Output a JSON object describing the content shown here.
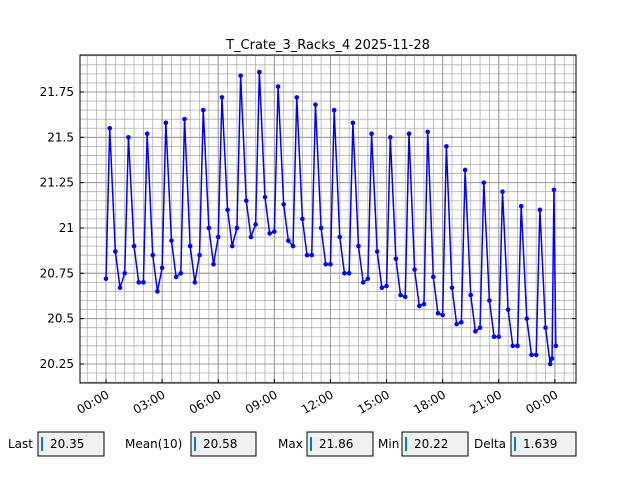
{
  "chart_data": {
    "type": "line",
    "title": "T_Crate_3_Racks_4 2025-11-28",
    "x": [
      0,
      0.2,
      0.5,
      0.75,
      1,
      1.2,
      1.5,
      1.75,
      2,
      2.2,
      2.5,
      2.75,
      3,
      3.2,
      3.5,
      3.75,
      4,
      4.2,
      4.5,
      4.75,
      5,
      5.2,
      5.5,
      5.75,
      6,
      6.2,
      6.5,
      6.75,
      7,
      7.2,
      7.5,
      7.75,
      8,
      8.2,
      8.5,
      8.75,
      9,
      9.2,
      9.5,
      9.75,
      10,
      10.2,
      10.5,
      10.75,
      11,
      11.2,
      11.5,
      11.75,
      12,
      12.2,
      12.5,
      12.75,
      13,
      13.2,
      13.5,
      13.75,
      14,
      14.2,
      14.5,
      14.75,
      15,
      15.2,
      15.5,
      15.75,
      16,
      16.2,
      16.5,
      16.75,
      17,
      17.2,
      17.5,
      17.75,
      18,
      18.2,
      18.5,
      18.75,
      19,
      19.2,
      19.5,
      19.75,
      20,
      20.2,
      20.5,
      20.75,
      21,
      21.2,
      21.5,
      21.75,
      22,
      22.2,
      22.5,
      22.75,
      23,
      23.2,
      23.5,
      23.75,
      23.85,
      23.95,
      24.05
    ],
    "series": [
      {
        "name": "T_Crate_3_Racks_4",
        "color": "#0000ff",
        "values": [
          20.72,
          21.55,
          20.87,
          20.67,
          20.75,
          21.5,
          20.9,
          20.7,
          20.7,
          21.52,
          20.85,
          20.65,
          20.78,
          21.58,
          20.93,
          20.73,
          20.75,
          21.6,
          20.9,
          20.7,
          20.85,
          21.65,
          21.0,
          20.8,
          20.95,
          21.72,
          21.1,
          20.9,
          21.0,
          21.84,
          21.15,
          20.95,
          21.02,
          21.86,
          21.17,
          20.97,
          20.98,
          21.78,
          21.13,
          20.93,
          20.9,
          21.72,
          21.05,
          20.85,
          20.85,
          21.68,
          21.0,
          20.8,
          20.8,
          21.65,
          20.95,
          20.75,
          20.75,
          21.58,
          20.9,
          20.7,
          20.72,
          21.52,
          20.87,
          20.67,
          20.68,
          21.5,
          20.83,
          20.63,
          20.62,
          21.52,
          20.77,
          20.57,
          20.58,
          21.53,
          20.73,
          20.53,
          20.52,
          21.45,
          20.67,
          20.47,
          20.48,
          21.32,
          20.63,
          20.43,
          20.45,
          21.25,
          20.6,
          20.4,
          20.4,
          21.2,
          20.55,
          20.35,
          20.35,
          21.12,
          20.5,
          20.3,
          20.3,
          21.1,
          20.45,
          20.25,
          20.28,
          21.21,
          20.35
        ]
      }
    ],
    "xlim": [
      -1.39,
      25.13
    ],
    "xticks": [
      {
        "value": 0,
        "label": "00:00"
      },
      {
        "value": 3,
        "label": "03:00"
      },
      {
        "value": 6,
        "label": "06:00"
      },
      {
        "value": 9,
        "label": "09:00"
      },
      {
        "value": 12,
        "label": "12:00"
      },
      {
        "value": 15,
        "label": "15:00"
      },
      {
        "value": 18,
        "label": "18:00"
      },
      {
        "value": 21,
        "label": "21:00"
      },
      {
        "value": 24,
        "label": "00:00"
      }
    ],
    "ylim": [
      20.145,
      21.954
    ],
    "yticks": [
      20.25,
      20.5,
      20.75,
      21,
      21.25,
      21.5,
      21.75
    ],
    "grid": true,
    "xminor_step": 0.5,
    "yminor_step": 0.05
  },
  "stats": [
    {
      "label": "Last",
      "value": 20.35
    },
    {
      "label": "Mean(10)",
      "value": 20.58
    },
    {
      "label": "Max",
      "value": 21.86
    },
    {
      "label": "Min",
      "value": 20.22
    },
    {
      "label": "Delta",
      "value": 1.639
    }
  ]
}
